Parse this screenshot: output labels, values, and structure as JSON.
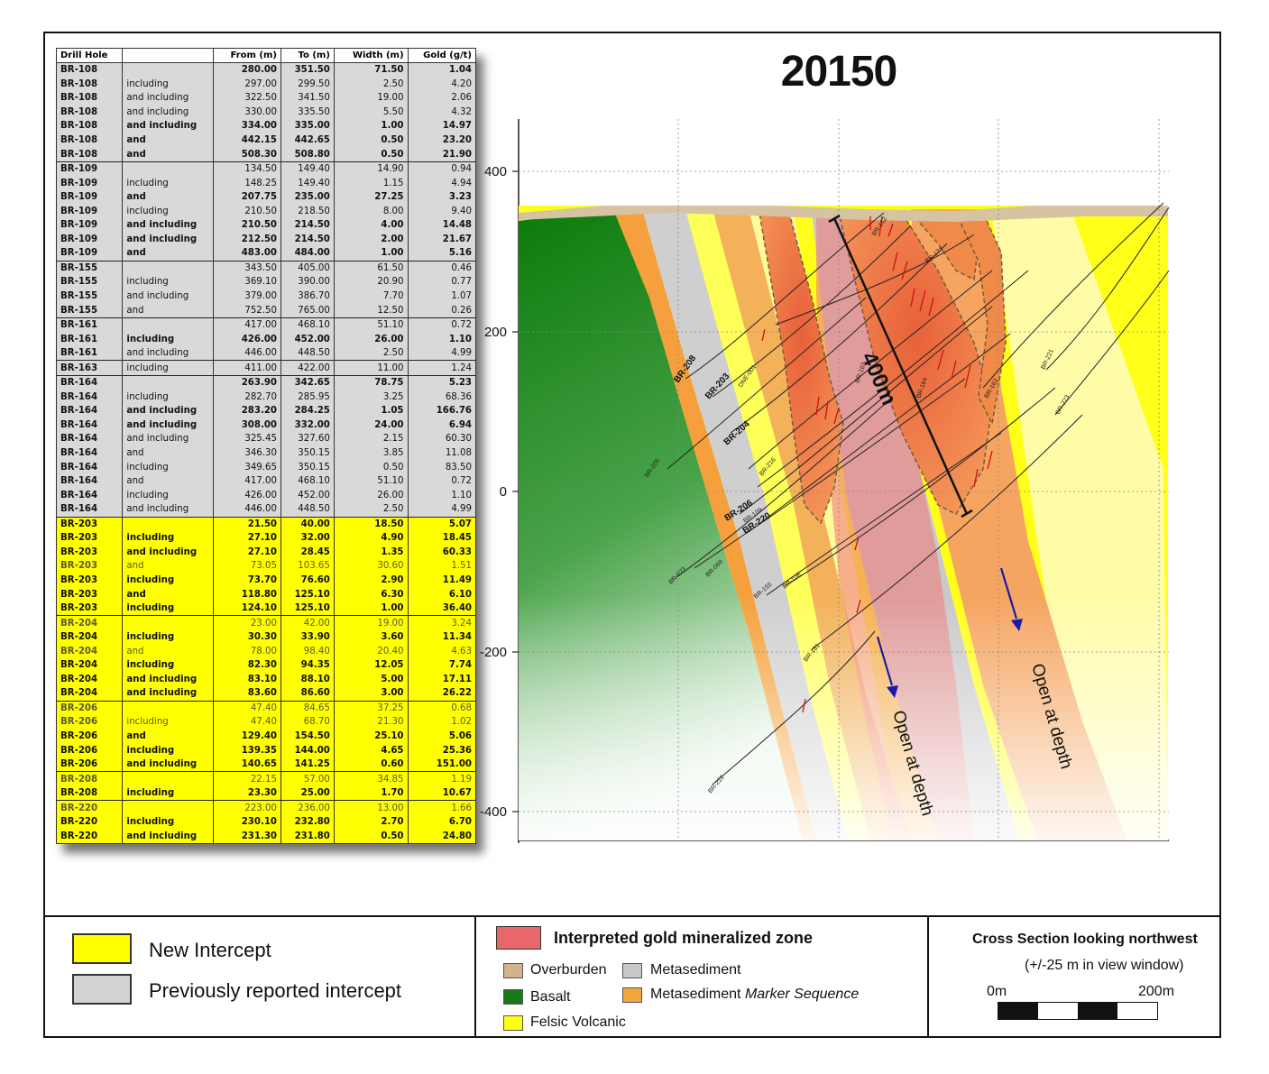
{
  "section_title": "20150",
  "table": {
    "headers": [
      "Drill Hole",
      "",
      "From (m)",
      "To (m)",
      "Width (m)",
      "Gold (g/t)"
    ],
    "rows": [
      {
        "hole": "BR-108",
        "note": "",
        "from": "280.00",
        "to": "351.50",
        "width": "71.50",
        "gold": "1.04",
        "style": "grey",
        "bold": true,
        "group_start": true
      },
      {
        "hole": "BR-108",
        "note": "including",
        "from": "297.00",
        "to": "299.50",
        "width": "2.50",
        "gold": "4.20",
        "style": "grey",
        "bold": false
      },
      {
        "hole": "BR-108",
        "note": "and including",
        "from": "322.50",
        "to": "341.50",
        "width": "19.00",
        "gold": "2.06",
        "style": "grey",
        "bold": false
      },
      {
        "hole": "BR-108",
        "note": "and including",
        "from": "330.00",
        "to": "335.50",
        "width": "5.50",
        "gold": "4.32",
        "style": "grey",
        "bold": false
      },
      {
        "hole": "BR-108",
        "note": "and including",
        "from": "334.00",
        "to": "335.00",
        "width": "1.00",
        "gold": "14.97",
        "style": "grey",
        "bold": true
      },
      {
        "hole": "BR-108",
        "note": "and",
        "from": "442.15",
        "to": "442.65",
        "width": "0.50",
        "gold": "23.20",
        "style": "grey",
        "bold": true
      },
      {
        "hole": "BR-108",
        "note": "and",
        "from": "508.30",
        "to": "508.80",
        "width": "0.50",
        "gold": "21.90",
        "style": "grey",
        "bold": true
      },
      {
        "hole": "BR-109",
        "note": "",
        "from": "134.50",
        "to": "149.40",
        "width": "14.90",
        "gold": "0.94",
        "style": "grey",
        "bold": false,
        "group_start": true
      },
      {
        "hole": "BR-109",
        "note": "including",
        "from": "148.25",
        "to": "149.40",
        "width": "1.15",
        "gold": "4.94",
        "style": "grey",
        "bold": false
      },
      {
        "hole": "BR-109",
        "note": "and",
        "from": "207.75",
        "to": "235.00",
        "width": "27.25",
        "gold": "3.23",
        "style": "grey",
        "bold": true
      },
      {
        "hole": "BR-109",
        "note": "including",
        "from": "210.50",
        "to": "218.50",
        "width": "8.00",
        "gold": "9.40",
        "style": "grey",
        "bold": false
      },
      {
        "hole": "BR-109",
        "note": "and including",
        "from": "210.50",
        "to": "214.50",
        "width": "4.00",
        "gold": "14.48",
        "style": "grey",
        "bold": true
      },
      {
        "hole": "BR-109",
        "note": "and including",
        "from": "212.50",
        "to": "214.50",
        "width": "2.00",
        "gold": "21.67",
        "style": "grey",
        "bold": true
      },
      {
        "hole": "BR-109",
        "note": "and",
        "from": "483.00",
        "to": "484.00",
        "width": "1.00",
        "gold": "5.16",
        "style": "grey",
        "bold": true
      },
      {
        "hole": "BR-155",
        "note": "",
        "from": "343.50",
        "to": "405.00",
        "width": "61.50",
        "gold": "0.46",
        "style": "grey",
        "bold": false,
        "group_start": true
      },
      {
        "hole": "BR-155",
        "note": "including",
        "from": "369.10",
        "to": "390.00",
        "width": "20.90",
        "gold": "0.77",
        "style": "grey",
        "bold": false
      },
      {
        "hole": "BR-155",
        "note": "and including",
        "from": "379.00",
        "to": "386.70",
        "width": "7.70",
        "gold": "1.07",
        "style": "grey",
        "bold": false
      },
      {
        "hole": "BR-155",
        "note": "and",
        "from": "752.50",
        "to": "765.00",
        "width": "12.50",
        "gold": "0.26",
        "style": "grey",
        "bold": false
      },
      {
        "hole": "BR-161",
        "note": "",
        "from": "417.00",
        "to": "468.10",
        "width": "51.10",
        "gold": "0.72",
        "style": "grey",
        "bold": false,
        "group_start": true
      },
      {
        "hole": "BR-161",
        "note": "including",
        "from": "426.00",
        "to": "452.00",
        "width": "26.00",
        "gold": "1.10",
        "style": "grey",
        "bold": true
      },
      {
        "hole": "BR-161",
        "note": "and including",
        "from": "446.00",
        "to": "448.50",
        "width": "2.50",
        "gold": "4.99",
        "style": "grey",
        "bold": false
      },
      {
        "hole": "BR-163",
        "note": "including",
        "from": "411.00",
        "to": "422.00",
        "width": "11.00",
        "gold": "1.24",
        "style": "grey",
        "bold": false,
        "group_start": true
      },
      {
        "hole": "BR-164",
        "note": "",
        "from": "263.90",
        "to": "342.65",
        "width": "78.75",
        "gold": "5.23",
        "style": "grey",
        "bold": true,
        "group_start": true
      },
      {
        "hole": "BR-164",
        "note": "including",
        "from": "282.70",
        "to": "285.95",
        "width": "3.25",
        "gold": "68.36",
        "style": "grey",
        "bold": false
      },
      {
        "hole": "BR-164",
        "note": "and including",
        "from": "283.20",
        "to": "284.25",
        "width": "1.05",
        "gold": "166.76",
        "style": "grey",
        "bold": true
      },
      {
        "hole": "BR-164",
        "note": "and including",
        "from": "308.00",
        "to": "332.00",
        "width": "24.00",
        "gold": "6.94",
        "style": "grey",
        "bold": true
      },
      {
        "hole": "BR-164",
        "note": "and including",
        "from": "325.45",
        "to": "327.60",
        "width": "2.15",
        "gold": "60.30",
        "style": "grey",
        "bold": false
      },
      {
        "hole": "BR-164",
        "note": "and",
        "from": "346.30",
        "to": "350.15",
        "width": "3.85",
        "gold": "11.08",
        "style": "grey",
        "bold": false
      },
      {
        "hole": "BR-164",
        "note": "including",
        "from": "349.65",
        "to": "350.15",
        "width": "0.50",
        "gold": "83.50",
        "style": "grey",
        "bold": false
      },
      {
        "hole": "BR-164",
        "note": "and",
        "from": "417.00",
        "to": "468.10",
        "width": "51.10",
        "gold": "0.72",
        "style": "grey",
        "bold": false
      },
      {
        "hole": "BR-164",
        "note": "including",
        "from": "426.00",
        "to": "452.00",
        "width": "26.00",
        "gold": "1.10",
        "style": "grey",
        "bold": false
      },
      {
        "hole": "BR-164",
        "note": "and including",
        "from": "446.00",
        "to": "448.50",
        "width": "2.50",
        "gold": "4.99",
        "style": "grey",
        "bold": false
      },
      {
        "hole": "BR-203",
        "note": "",
        "from": "21.50",
        "to": "40.00",
        "width": "18.50",
        "gold": "5.07",
        "style": "yel",
        "bold": true,
        "group_start": true
      },
      {
        "hole": "BR-203",
        "note": "including",
        "from": "27.10",
        "to": "32.00",
        "width": "4.90",
        "gold": "18.45",
        "style": "yel",
        "bold": true
      },
      {
        "hole": "BR-203",
        "note": "and including",
        "from": "27.10",
        "to": "28.45",
        "width": "1.35",
        "gold": "60.33",
        "style": "yel",
        "bold": true
      },
      {
        "hole": "BR-203",
        "note": "and",
        "from": "73.05",
        "to": "103.65",
        "width": "30.60",
        "gold": "1.51",
        "style": "yel",
        "bold": false,
        "dim": true
      },
      {
        "hole": "BR-203",
        "note": "including",
        "from": "73.70",
        "to": "76.60",
        "width": "2.90",
        "gold": "11.49",
        "style": "yel",
        "bold": true
      },
      {
        "hole": "BR-203",
        "note": "and",
        "from": "118.80",
        "to": "125.10",
        "width": "6.30",
        "gold": "6.10",
        "style": "yel",
        "bold": true
      },
      {
        "hole": "BR-203",
        "note": "including",
        "from": "124.10",
        "to": "125.10",
        "width": "1.00",
        "gold": "36.40",
        "style": "yel",
        "bold": true
      },
      {
        "hole": "BR-204",
        "note": "",
        "from": "23.00",
        "to": "42.00",
        "width": "19.00",
        "gold": "3.24",
        "style": "yel",
        "bold": false,
        "dim": true,
        "group_start": true
      },
      {
        "hole": "BR-204",
        "note": "including",
        "from": "30.30",
        "to": "33.90",
        "width": "3.60",
        "gold": "11.34",
        "style": "yel",
        "bold": true
      },
      {
        "hole": "BR-204",
        "note": "and",
        "from": "78.00",
        "to": "98.40",
        "width": "20.40",
        "gold": "4.63",
        "style": "yel",
        "bold": false,
        "dim": true
      },
      {
        "hole": "BR-204",
        "note": "including",
        "from": "82.30",
        "to": "94.35",
        "width": "12.05",
        "gold": "7.74",
        "style": "yel",
        "bold": true
      },
      {
        "hole": "BR-204",
        "note": "and including",
        "from": "83.10",
        "to": "88.10",
        "width": "5.00",
        "gold": "17.11",
        "style": "yel",
        "bold": true
      },
      {
        "hole": "BR-204",
        "note": "and including",
        "from": "83.60",
        "to": "86.60",
        "width": "3.00",
        "gold": "26.22",
        "style": "yel",
        "bold": true
      },
      {
        "hole": "BR-206",
        "note": "",
        "from": "47.40",
        "to": "84.65",
        "width": "37.25",
        "gold": "0.68",
        "style": "yel",
        "bold": false,
        "dim": true,
        "group_start": true
      },
      {
        "hole": "BR-206",
        "note": "including",
        "from": "47.40",
        "to": "68.70",
        "width": "21.30",
        "gold": "1.02",
        "style": "yel",
        "bold": false,
        "dim": true
      },
      {
        "hole": "BR-206",
        "note": "and",
        "from": "129.40",
        "to": "154.50",
        "width": "25.10",
        "gold": "5.06",
        "style": "yel",
        "bold": true
      },
      {
        "hole": "BR-206",
        "note": "including",
        "from": "139.35",
        "to": "144.00",
        "width": "4.65",
        "gold": "25.36",
        "style": "yel",
        "bold": true
      },
      {
        "hole": "BR-206",
        "note": "and including",
        "from": "140.65",
        "to": "141.25",
        "width": "0.60",
        "gold": "151.00",
        "style": "yel",
        "bold": true
      },
      {
        "hole": "BR-208",
        "note": "",
        "from": "22.15",
        "to": "57.00",
        "width": "34.85",
        "gold": "1.19",
        "style": "yel",
        "bold": false,
        "dim": true,
        "group_start": true
      },
      {
        "hole": "BR-208",
        "note": "including",
        "from": "23.30",
        "to": "25.00",
        "width": "1.70",
        "gold": "10.67",
        "style": "yel",
        "bold": true
      },
      {
        "hole": "BR-220",
        "note": "",
        "from": "223.00",
        "to": "236.00",
        "width": "13.00",
        "gold": "1.66",
        "style": "yel",
        "bold": false,
        "dim": true,
        "group_start": true
      },
      {
        "hole": "BR-220",
        "note": "including",
        "from": "230.10",
        "to": "232.80",
        "width": "2.70",
        "gold": "6.70",
        "style": "yel",
        "bold": true
      },
      {
        "hole": "BR-220",
        "note": "and including",
        "from": "231.30",
        "to": "231.80",
        "width": "0.50",
        "gold": "24.80",
        "style": "yel",
        "bold": true
      }
    ]
  },
  "section": {
    "elevation_labels": [
      "400",
      "200",
      "0",
      "-200",
      "-400"
    ],
    "scale_label": "400m",
    "open_at_depth": [
      "Open at depth",
      "Open at depth"
    ],
    "hole_labels_bold": [
      "BR-208",
      "BR-203",
      "BR-204",
      "BR-206",
      "BR-220"
    ],
    "hole_labels_small": [
      "BR-205",
      "BR-216",
      "DNE-001",
      "BR-109",
      "BR-023",
      "BR-069",
      "BR-155",
      "BR-108",
      "BR-161",
      "BR-222",
      "BR-163",
      "BR-164",
      "BR-221",
      "BR-223",
      "BR-162",
      "BR-171",
      "BR-163"
    ]
  },
  "legend": {
    "new_intercept": "New Intercept",
    "previous_intercept": "Previously reported  intercept",
    "mineralized_zone": "Interpreted gold mineralized zone",
    "overburden": "Overburden",
    "metasediment": "Metasediment",
    "basalt": "Basalt",
    "metasediment_marker_prefix": "Metasediment ",
    "metasediment_marker_italic": "Marker Sequence",
    "felsic_volcanic": "Felsic Volcanic",
    "view_direction": "Cross Section looking northwest",
    "view_window": "(+/-25 m in view window)",
    "scale_start": "0m",
    "scale_end": "200m"
  },
  "colors": {
    "new_intercept": "#ffff00",
    "previous_intercept": "#d9d9d9",
    "mineralized_zone": "#e8676a",
    "overburden": "#d2b48c",
    "metasediment": "#c8c8c8",
    "basalt": "#1a7a1a",
    "metasediment_marker": "#f0a63a",
    "felsic_volcanic": "#ffff14",
    "arrow": "#1a1aa8"
  }
}
